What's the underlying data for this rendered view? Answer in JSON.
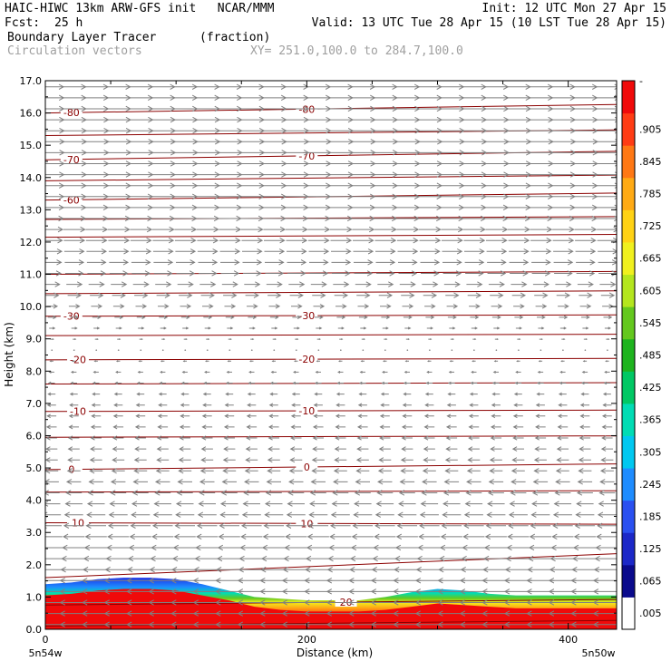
{
  "header": {
    "title": "HAIC-HIWC 13km ARW-GFS init   NCAR/MMM",
    "init": "Init: 12 UTC Mon 27 Apr 15",
    "fcst_label": "Fcst:",
    "fcst_value": "25 h",
    "valid": "Valid: 13 UTC Tue 28 Apr 15 (10 LST Tue 28 Apr 15)",
    "field_name": "Boundary Layer Tracer",
    "field_units": "(fraction)",
    "vector_name": "Circulation vectors",
    "xy_range": "XY= 251.0,100.0 to 284.7,100.0"
  },
  "chart_data": {
    "type": "heatmap",
    "xlabel": "Distance (km)",
    "ylabel": "Height (km)",
    "xlim": [
      0,
      437
    ],
    "ylim": [
      0,
      17
    ],
    "x_ticks": [
      {
        "value": 0,
        "label": "0"
      },
      {
        "value": 200,
        "label": "200"
      },
      {
        "value": 400,
        "label": "400"
      }
    ],
    "x_end_labels": {
      "left": "5n54w",
      "right": "5n50w"
    },
    "y_ticks": [
      {
        "value": 0,
        "label": "0.0"
      },
      {
        "value": 1,
        "label": "1.0"
      },
      {
        "value": 2,
        "label": "2.0"
      },
      {
        "value": 3,
        "label": "3.0"
      },
      {
        "value": 4,
        "label": "4.0"
      },
      {
        "value": 5,
        "label": "5.0"
      },
      {
        "value": 6,
        "label": "6.0"
      },
      {
        "value": 7,
        "label": "7.0"
      },
      {
        "value": 8,
        "label": "8.0"
      },
      {
        "value": 9,
        "label": "9.0"
      },
      {
        "value": 10,
        "label": "10.0"
      },
      {
        "value": 11,
        "label": "11.0"
      },
      {
        "value": 12,
        "label": "12.0"
      },
      {
        "value": 13,
        "label": "13.0"
      },
      {
        "value": 14,
        "label": "14.0"
      },
      {
        "value": 15,
        "label": "15.0"
      },
      {
        "value": 16,
        "label": "16.0"
      },
      {
        "value": 17,
        "label": "17.0"
      }
    ],
    "colorbar": {
      "labels": [
        "-",
        ".905",
        ".845",
        ".785",
        ".725",
        ".665",
        ".605",
        ".545",
        ".485",
        ".425",
        ".365",
        ".305",
        ".245",
        ".185",
        ".125",
        ".065",
        ".005"
      ],
      "colors": [
        "#ffffff",
        "#0a0a8c",
        "#1c28c8",
        "#2a50f0",
        "#1e8cff",
        "#00c8f0",
        "#00dcb4",
        "#00c864",
        "#1eb41e",
        "#64c81e",
        "#b4e61e",
        "#f0f01e",
        "#ffd214",
        "#ffaa14",
        "#ff7814",
        "#ff3c14",
        "#f00a0a"
      ]
    },
    "tracer_layer": {
      "x": [
        0,
        20,
        40,
        60,
        80,
        100,
        120,
        140,
        160,
        180,
        200,
        220,
        240,
        260,
        280,
        300,
        320,
        340,
        360,
        380,
        400,
        420,
        437
      ],
      "top_km": [
        1.4,
        1.45,
        1.55,
        1.6,
        1.6,
        1.55,
        1.4,
        1.2,
        1.0,
        0.95,
        0.9,
        0.9,
        0.9,
        1.0,
        1.15,
        1.25,
        1.2,
        1.1,
        1.05,
        1.05,
        1.05,
        1.05,
        1.05
      ],
      "red_top_km": [
        1.05,
        1.1,
        1.2,
        1.25,
        1.25,
        1.2,
        1.05,
        0.9,
        0.7,
        0.6,
        0.55,
        0.55,
        0.55,
        0.6,
        0.7,
        0.8,
        0.75,
        0.7,
        0.65,
        0.65,
        0.65,
        0.65,
        0.65
      ]
    },
    "temperature_contours": [
      {
        "label": "-80",
        "level_km": 16.0,
        "slope": 0.0006,
        "label_x": [
          20,
          200
        ]
      },
      {
        "label": "",
        "level_km": 15.3,
        "slope": 0.0004
      },
      {
        "label": "-70",
        "level_km": 14.55,
        "slope": 0.0006,
        "label_x": [
          20,
          200
        ]
      },
      {
        "label": "",
        "level_km": 13.9,
        "slope": 0.0004
      },
      {
        "label": "-60",
        "level_km": 13.3,
        "slope": 0.0005,
        "label_x": [
          20
        ]
      },
      {
        "label": "",
        "level_km": 12.7,
        "slope": 0.0002
      },
      {
        "label": "",
        "level_km": 12.15,
        "slope": 0.0002
      },
      {
        "label": "",
        "level_km": 11.0,
        "slope": 0.0002
      },
      {
        "label": "",
        "level_km": 10.4,
        "slope": 0.0002
      },
      {
        "label": "-30",
        "level_km": 9.7,
        "slope": 0.0001,
        "label_x": [
          20,
          200
        ]
      },
      {
        "label": "",
        "level_km": 9.1,
        "slope": 0.0001
      },
      {
        "label": "-20",
        "level_km": 8.35,
        "slope": 0.0001,
        "label_x": [
          25,
          200
        ]
      },
      {
        "label": "",
        "level_km": 7.6,
        "slope": 0.0001
      },
      {
        "label": "-10",
        "level_km": 6.75,
        "slope": 0.0001,
        "label_x": [
          25,
          200
        ]
      },
      {
        "label": "",
        "level_km": 5.95,
        "slope": 0.0001
      },
      {
        "label": "0",
        "level_km": 4.95,
        "slope": 0.0004,
        "label_x": [
          20,
          200
        ]
      },
      {
        "label": "",
        "level_km": 4.25,
        "slope": 0.0001
      },
      {
        "label": "10",
        "level_km": 3.3,
        "slope": -0.0001,
        "label_x": [
          25,
          200
        ]
      },
      {
        "label": "",
        "level_km": 1.6,
        "slope": 0.0017
      },
      {
        "label": "20",
        "level_km": 0.75,
        "slope": 0.0004,
        "label_x": [
          230
        ]
      },
      {
        "label": "",
        "level_km": 0.1,
        "slope": 0.0004
      }
    ],
    "vectors": {
      "x_spacing_km": 17,
      "y_spacing_km": 0.34,
      "u_profile": [
        {
          "z": 0.0,
          "u": -1.0
        },
        {
          "z": 1.5,
          "u": -1.0
        },
        {
          "z": 3.0,
          "u": -0.75
        },
        {
          "z": 5.0,
          "u": -0.45
        },
        {
          "z": 7.0,
          "u": -0.3
        },
        {
          "z": 8.2,
          "u": -0.15
        },
        {
          "z": 8.8,
          "u": 0.05
        },
        {
          "z": 9.5,
          "u": 0.25
        },
        {
          "z": 11.0,
          "u": 0.65
        },
        {
          "z": 13.0,
          "u": 0.85
        },
        {
          "z": 15.0,
          "u": 0.9
        },
        {
          "z": 17.0,
          "u": 0.85
        }
      ]
    }
  }
}
